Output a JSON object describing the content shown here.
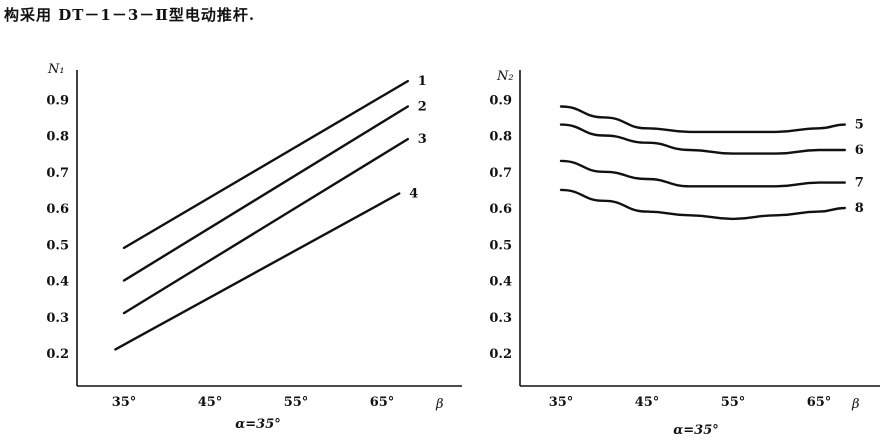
{
  "heading": "构采用 DT－1－3－Ⅱ型电动推杆.",
  "chart_data": [
    {
      "type": "line",
      "ylabel": "N₁",
      "xlabel": "β",
      "caption": "α=35°",
      "x_ticks": [
        "35°",
        "45°",
        "55°",
        "65°"
      ],
      "y_ticks": [
        "0.2",
        "0.3",
        "0.4",
        "0.5",
        "0.6",
        "0.7",
        "0.8",
        "0.9"
      ],
      "xlim": [
        30,
        72
      ],
      "ylim": [
        0.1,
        1.0
      ],
      "series": [
        {
          "name": "1",
          "x": [
            35,
            68
          ],
          "y": [
            0.49,
            0.95
          ]
        },
        {
          "name": "2",
          "x": [
            35,
            68
          ],
          "y": [
            0.4,
            0.88
          ]
        },
        {
          "name": "3",
          "x": [
            35,
            68
          ],
          "y": [
            0.31,
            0.79
          ]
        },
        {
          "name": "4",
          "x": [
            34,
            67
          ],
          "y": [
            0.21,
            0.64
          ]
        }
      ]
    },
    {
      "type": "line",
      "ylabel": "N₂",
      "xlabel": "β",
      "caption": "α=35°",
      "x_ticks": [
        "35°",
        "45°",
        "55°",
        "65°"
      ],
      "y_ticks": [
        "0.2",
        "0.3",
        "0.4",
        "0.5",
        "0.6",
        "0.7",
        "0.8",
        "0.9"
      ],
      "xlim": [
        30,
        72
      ],
      "ylim": [
        0.1,
        1.0
      ],
      "series": [
        {
          "name": "5",
          "x": [
            35,
            40,
            45,
            50,
            55,
            60,
            65,
            68
          ],
          "y": [
            0.88,
            0.85,
            0.82,
            0.81,
            0.81,
            0.81,
            0.82,
            0.83
          ]
        },
        {
          "name": "6",
          "x": [
            35,
            40,
            45,
            50,
            55,
            60,
            65,
            68
          ],
          "y": [
            0.83,
            0.8,
            0.78,
            0.76,
            0.75,
            0.75,
            0.76,
            0.76
          ]
        },
        {
          "name": "7",
          "x": [
            35,
            40,
            45,
            50,
            55,
            60,
            65,
            68
          ],
          "y": [
            0.73,
            0.7,
            0.68,
            0.66,
            0.66,
            0.66,
            0.67,
            0.67
          ]
        },
        {
          "name": "8",
          "x": [
            35,
            40,
            45,
            50,
            55,
            60,
            65,
            68
          ],
          "y": [
            0.65,
            0.62,
            0.59,
            0.58,
            0.57,
            0.58,
            0.59,
            0.6
          ]
        }
      ]
    }
  ]
}
